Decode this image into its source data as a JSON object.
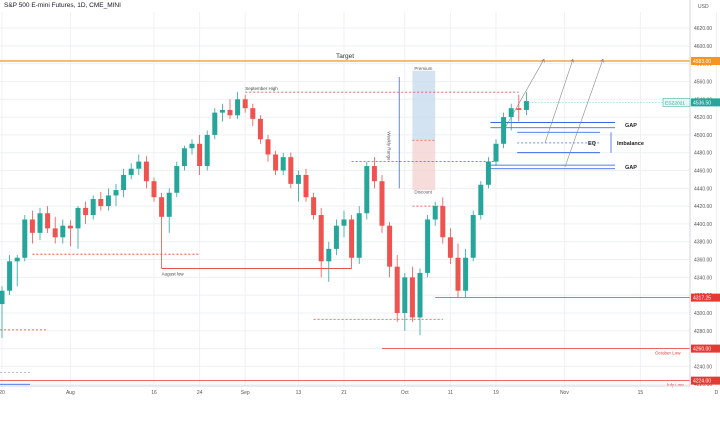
{
  "header": {
    "title": "S&P 500 E-mini Futures, 1D, CME_MINI"
  },
  "currency": "USD",
  "colors": {
    "up": "#26a69a",
    "down": "#ef5350",
    "target": "#f7931e",
    "level": "#e53935",
    "zone": "#1e53e5",
    "grid": "#eef0f3"
  },
  "chart_data": {
    "type": "candlestick",
    "title": "S&P 500 E-mini Futures, 1D, CME_MINI",
    "ylim": [
      4218,
      4638
    ],
    "y_ticks": [
      4220,
      4240,
      4260,
      4280,
      4300,
      4320,
      4340,
      4360,
      4380,
      4400,
      4420,
      4440,
      4460,
      4480,
      4500,
      4520,
      4540,
      4560,
      4580,
      4600,
      4620
    ],
    "x_ticks": [
      {
        "label": "20",
        "i": 0
      },
      {
        "label": "Aug",
        "i": 9
      },
      {
        "label": "16",
        "i": 20
      },
      {
        "label": "24",
        "i": 26
      },
      {
        "label": "Sep",
        "i": 32
      },
      {
        "label": "13",
        "i": 39
      },
      {
        "label": "21",
        "i": 45
      },
      {
        "label": "Oct",
        "i": 53
      },
      {
        "label": "11",
        "i": 59
      },
      {
        "label": "19",
        "i": 65
      },
      {
        "label": "Nov",
        "i": 74
      },
      {
        "label": "15",
        "i": 84
      },
      {
        "label": "D",
        "i": 94
      }
    ],
    "last_price": {
      "symbol": "ESZ2021",
      "value": "4536.50"
    },
    "price_labels": [
      {
        "text": "4583.00",
        "value": 4583,
        "kind": "target"
      },
      {
        "text": "4317.25",
        "value": 4317.25,
        "kind": "level"
      },
      {
        "text": "4260.00",
        "value": 4260,
        "kind": "level"
      },
      {
        "text": "4224.00",
        "value": 4224,
        "kind": "level"
      }
    ],
    "candles": [
      [
        4310,
        4330,
        4272,
        4325
      ],
      [
        4325,
        4365,
        4320,
        4358
      ],
      [
        4358,
        4365,
        4330,
        4362
      ],
      [
        4362,
        4410,
        4358,
        4405
      ],
      [
        4405,
        4415,
        4378,
        4390
      ],
      [
        4390,
        4418,
        4382,
        4412
      ],
      [
        4412,
        4420,
        4390,
        4395
      ],
      [
        4395,
        4408,
        4378,
        4385
      ],
      [
        4385,
        4405,
        4378,
        4398
      ],
      [
        4398,
        4404,
        4375,
        4395
      ],
      [
        4395,
        4420,
        4372,
        4418
      ],
      [
        4418,
        4425,
        4400,
        4410
      ],
      [
        4410,
        4432,
        4405,
        4428
      ],
      [
        4428,
        4436,
        4415,
        4420
      ],
      [
        4420,
        4440,
        4415,
        4432
      ],
      [
        4432,
        4445,
        4420,
        4438
      ],
      [
        4438,
        4462,
        4430,
        4455
      ],
      [
        4455,
        4468,
        4450,
        4462
      ],
      [
        4462,
        4478,
        4455,
        4470
      ],
      [
        4470,
        4476,
        4440,
        4448
      ],
      [
        4448,
        4452,
        4425,
        4430
      ],
      [
        4430,
        4435,
        4350,
        4408
      ],
      [
        4408,
        4440,
        4390,
        4435
      ],
      [
        4435,
        4470,
        4430,
        4465
      ],
      [
        4465,
        4488,
        4460,
        4485
      ],
      [
        4485,
        4495,
        4478,
        4490
      ],
      [
        4490,
        4500,
        4455,
        4465
      ],
      [
        4465,
        4505,
        4460,
        4500
      ],
      [
        4500,
        4530,
        4495,
        4525
      ],
      [
        4525,
        4535,
        4515,
        4528
      ],
      [
        4528,
        4540,
        4518,
        4522
      ],
      [
        4522,
        4548,
        4518,
        4540
      ],
      [
        4540,
        4545,
        4525,
        4530
      ],
      [
        4530,
        4535,
        4510,
        4518
      ],
      [
        4518,
        4522,
        4490,
        4495
      ],
      [
        4495,
        4500,
        4470,
        4478
      ],
      [
        4478,
        4482,
        4455,
        4460
      ],
      [
        4460,
        4480,
        4455,
        4475
      ],
      [
        4475,
        4480,
        4440,
        4445
      ],
      [
        4445,
        4460,
        4425,
        4455
      ],
      [
        4455,
        4462,
        4425,
        4430
      ],
      [
        4430,
        4435,
        4405,
        4410
      ],
      [
        4410,
        4418,
        4340,
        4358
      ],
      [
        4358,
        4380,
        4335,
        4372
      ],
      [
        4372,
        4405,
        4365,
        4398
      ],
      [
        4398,
        4415,
        4385,
        4405
      ],
      [
        4405,
        4410,
        4350,
        4362
      ],
      [
        4362,
        4420,
        4355,
        4412
      ],
      [
        4412,
        4470,
        4405,
        4465
      ],
      [
        4465,
        4475,
        4440,
        4448
      ],
      [
        4448,
        4455,
        4390,
        4398
      ],
      [
        4398,
        4402,
        4340,
        4352
      ],
      [
        4352,
        4365,
        4290,
        4300
      ],
      [
        4300,
        4345,
        4280,
        4340
      ],
      [
        4340,
        4352,
        4290,
        4295
      ],
      [
        4295,
        4350,
        4275,
        4345
      ],
      [
        4345,
        4410,
        4340,
        4405
      ],
      [
        4405,
        4425,
        4398,
        4420
      ],
      [
        4420,
        4430,
        4378,
        4385
      ],
      [
        4385,
        4395,
        4355,
        4362
      ],
      [
        4362,
        4378,
        4318,
        4325
      ],
      [
        4325,
        4372,
        4318,
        4362
      ],
      [
        4362,
        4415,
        4358,
        4410
      ],
      [
        4410,
        4448,
        4405,
        4444
      ],
      [
        4444,
        4475,
        4440,
        4470
      ],
      [
        4470,
        4495,
        4465,
        4490
      ],
      [
        4490,
        4525,
        4485,
        4520
      ],
      [
        4520,
        4535,
        4505,
        4530
      ],
      [
        4530,
        4545,
        4515,
        4528
      ],
      [
        4528,
        4548,
        4522,
        4538
      ]
    ],
    "annotations": [
      {
        "text": "Target",
        "kind": "target-label"
      },
      {
        "text": "September High",
        "kind": "level-label"
      },
      {
        "text": "August low",
        "kind": "level-label"
      },
      {
        "text": "October Low",
        "kind": "level-label"
      },
      {
        "text": "July Low",
        "kind": "level-label"
      },
      {
        "text": "Premium",
        "kind": "zone-label"
      },
      {
        "text": "Discount",
        "kind": "zone-label"
      },
      {
        "text": "Weekly Range",
        "kind": "zone-label"
      },
      {
        "text": "GAP",
        "kind": "gap-label"
      },
      {
        "text": "EQ",
        "kind": "eq-label"
      },
      {
        "text": "Imbalance",
        "kind": "imb-label"
      },
      {
        "text": "GAP",
        "kind": "gap-label"
      }
    ]
  }
}
